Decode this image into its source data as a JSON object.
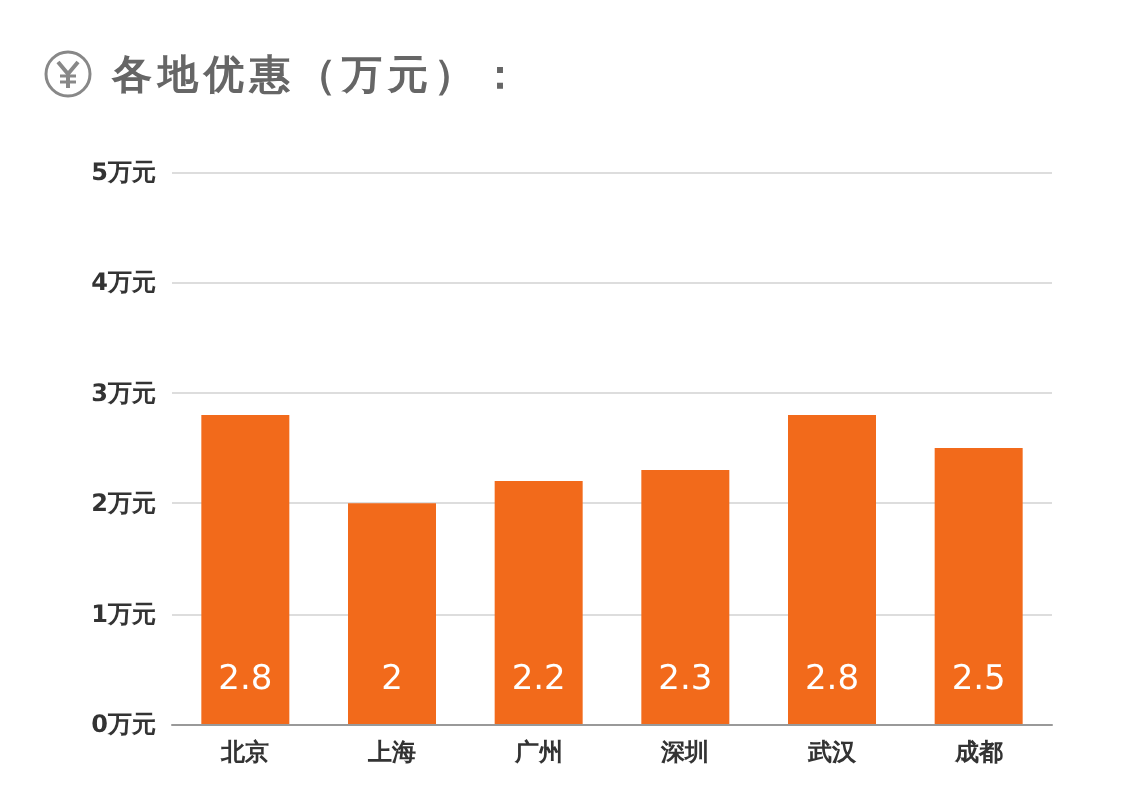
{
  "chart_data": {
    "type": "bar",
    "title": "各地优惠（万元）：",
    "categories": [
      "北京",
      "上海",
      "广州",
      "深圳",
      "武汉",
      "成都"
    ],
    "values": [
      2.8,
      2,
      2.2,
      2.3,
      2.8,
      2.5
    ],
    "color": "#f26a1b",
    "ylim": [
      0,
      5
    ],
    "yticks": [
      {
        "value": 0,
        "label": "0万元"
      },
      {
        "value": 1,
        "label": "1万元"
      },
      {
        "value": 2,
        "label": "2万元"
      },
      {
        "value": 3,
        "label": "3万元"
      },
      {
        "value": 4,
        "label": "4万元"
      },
      {
        "value": 5,
        "label": "5万元"
      }
    ],
    "grid": "y",
    "data_labels": true
  }
}
